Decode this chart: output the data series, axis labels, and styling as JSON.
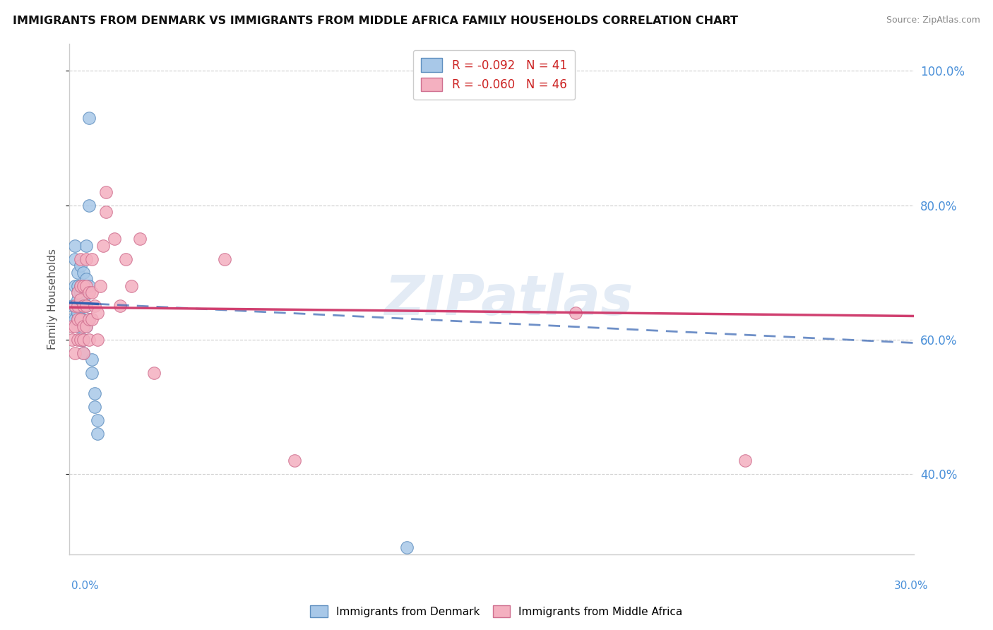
{
  "title": "IMMIGRANTS FROM DENMARK VS IMMIGRANTS FROM MIDDLE AFRICA FAMILY HOUSEHOLDS CORRELATION CHART",
  "source": "Source: ZipAtlas.com",
  "ylabel": "Family Households",
  "xlim": [
    0.0,
    0.3
  ],
  "ylim": [
    0.28,
    1.04
  ],
  "blue_color": "#a8c8e8",
  "blue_edge": "#6090c0",
  "pink_color": "#f4b0c0",
  "pink_edge": "#d07090",
  "trendline_blue": "#3060b0",
  "trendline_pink": "#d04070",
  "watermark": "ZIPatlas",
  "blue_points_x": [
    0.001,
    0.001,
    0.002,
    0.002,
    0.002,
    0.002,
    0.002,
    0.003,
    0.003,
    0.003,
    0.003,
    0.003,
    0.003,
    0.003,
    0.004,
    0.004,
    0.004,
    0.004,
    0.004,
    0.004,
    0.005,
    0.005,
    0.005,
    0.005,
    0.005,
    0.005,
    0.006,
    0.006,
    0.006,
    0.006,
    0.007,
    0.007,
    0.007,
    0.007,
    0.008,
    0.008,
    0.009,
    0.009,
    0.01,
    0.01,
    0.12
  ],
  "blue_points_y": [
    0.63,
    0.65,
    0.63,
    0.65,
    0.68,
    0.72,
    0.74,
    0.62,
    0.63,
    0.64,
    0.66,
    0.67,
    0.68,
    0.7,
    0.6,
    0.63,
    0.65,
    0.67,
    0.68,
    0.71,
    0.58,
    0.6,
    0.63,
    0.66,
    0.68,
    0.7,
    0.62,
    0.65,
    0.69,
    0.74,
    0.63,
    0.68,
    0.8,
    0.93,
    0.55,
    0.57,
    0.5,
    0.52,
    0.46,
    0.48,
    0.29
  ],
  "pink_points_x": [
    0.001,
    0.001,
    0.002,
    0.002,
    0.002,
    0.003,
    0.003,
    0.003,
    0.003,
    0.004,
    0.004,
    0.004,
    0.004,
    0.004,
    0.005,
    0.005,
    0.005,
    0.005,
    0.005,
    0.006,
    0.006,
    0.006,
    0.006,
    0.007,
    0.007,
    0.007,
    0.008,
    0.008,
    0.008,
    0.009,
    0.01,
    0.01,
    0.011,
    0.012,
    0.013,
    0.013,
    0.016,
    0.018,
    0.02,
    0.022,
    0.025,
    0.03,
    0.055,
    0.08,
    0.18,
    0.24
  ],
  "pink_points_y": [
    0.6,
    0.62,
    0.58,
    0.62,
    0.65,
    0.6,
    0.63,
    0.65,
    0.67,
    0.6,
    0.63,
    0.66,
    0.68,
    0.72,
    0.58,
    0.6,
    0.62,
    0.65,
    0.68,
    0.62,
    0.65,
    0.68,
    0.72,
    0.6,
    0.63,
    0.67,
    0.63,
    0.67,
    0.72,
    0.65,
    0.6,
    0.64,
    0.68,
    0.74,
    0.79,
    0.82,
    0.75,
    0.65,
    0.72,
    0.68,
    0.75,
    0.55,
    0.72,
    0.42,
    0.64,
    0.42
  ],
  "trend_blue_x0": 0.0,
  "trend_blue_y0": 0.655,
  "trend_blue_x1": 0.3,
  "trend_blue_y1": 0.595,
  "trend_blue_solid_end": 0.01,
  "trend_pink_x0": 0.0,
  "trend_pink_y0": 0.648,
  "trend_pink_x1": 0.3,
  "trend_pink_y1": 0.635
}
